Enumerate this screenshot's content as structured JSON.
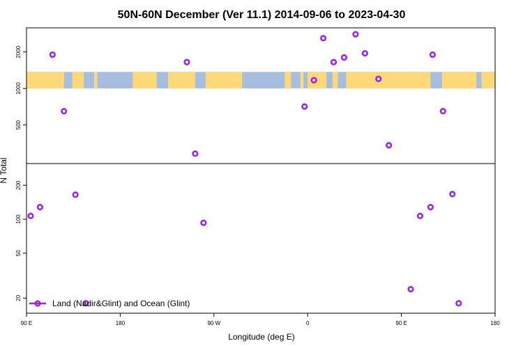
{
  "chart_data": {
    "type": "scatter",
    "title": "50N-60N December (Ver 11.1)   2014-09-06 to 2023-04-30",
    "xlabel": "Longitude (deg E)",
    "ylabel": "N Total",
    "x_axis": {
      "range_deg": [
        90,
        450
      ],
      "ticks": [
        {
          "deg": 90,
          "label": "90 E"
        },
        {
          "deg": 180,
          "label": "180"
        },
        {
          "deg": 270,
          "label": "90 W"
        },
        {
          "deg": 360,
          "label": "0"
        },
        {
          "deg": 450,
          "label": "90 E"
        },
        {
          "deg": 540,
          "label": "180"
        }
      ]
    },
    "y_scale": "log, broken axis",
    "upper_panel": {
      "ylim": [
        250,
        3000
      ],
      "ticks": [
        {
          "value": 500,
          "label": "500"
        },
        {
          "value": 1000,
          "label": "1000"
        },
        {
          "value": 2000,
          "label": "2000"
        }
      ]
    },
    "lower_panel": {
      "ylim": [
        16,
        290
      ],
      "ticks": [
        {
          "value": 20,
          "label": "20"
        },
        {
          "value": 50,
          "label": "50"
        },
        {
          "value": 100,
          "label": "100"
        },
        {
          "value": 200,
          "label": "200"
        }
      ]
    },
    "series": [
      {
        "name": "Land (Nadir&Glint) and Ocean (Glint)",
        "color": "#a020f0",
        "points": [
          {
            "lon": 115,
            "n": 1900
          },
          {
            "lon": 126,
            "n": 650
          },
          {
            "lon": 244,
            "n": 1650
          },
          {
            "lon": 252,
            "n": 290
          },
          {
            "lon": 357,
            "n": 710
          },
          {
            "lon": 366,
            "n": 1170
          },
          {
            "lon": 375,
            "n": 2600
          },
          {
            "lon": 385,
            "n": 1650
          },
          {
            "lon": 395,
            "n": 1800
          },
          {
            "lon": 406,
            "n": 2800
          },
          {
            "lon": 415,
            "n": 1950
          },
          {
            "lon": 428,
            "n": 1200
          },
          {
            "lon": 438,
            "n": 340
          },
          {
            "lon": 480,
            "n": 1900
          },
          {
            "lon": 490,
            "n": 650
          },
          {
            "lon": 94,
            "n": 107
          },
          {
            "lon": 103,
            "n": 128
          },
          {
            "lon": 137,
            "n": 165
          },
          {
            "lon": 147,
            "n": 18
          },
          {
            "lon": 260,
            "n": 93
          },
          {
            "lon": 459,
            "n": 24
          },
          {
            "lon": 468,
            "n": 107
          },
          {
            "lon": 478,
            "n": 128
          },
          {
            "lon": 499,
            "n": 167
          },
          {
            "lon": 505,
            "n": 18
          }
        ]
      }
    ],
    "legend": {
      "position": "bottom-left"
    },
    "map_strip": {
      "land_color": "#ffd87a",
      "ocean_color": "#a8bedf",
      "panel": "upper",
      "n_range": [
        1000,
        1370
      ]
    }
  }
}
